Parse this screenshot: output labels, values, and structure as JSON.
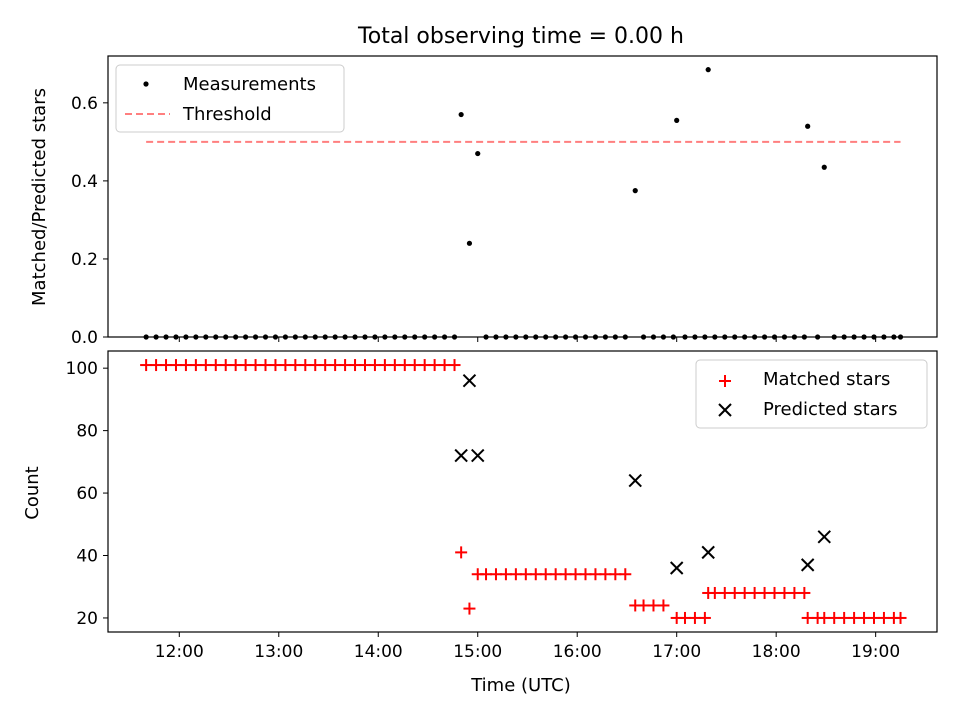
{
  "chart_data": [
    {
      "type": "scatter",
      "title": "Total observing time = 0.00 h",
      "xlabel": "",
      "ylabel": "Matched/Predicted stars",
      "xlim": [
        "11:17",
        "19:37"
      ],
      "ylim": [
        0,
        0.72
      ],
      "yticks": [
        "0.0",
        "0.2",
        "0.4",
        "0.6"
      ],
      "grid": false,
      "legend_position": "upper-left",
      "legend": [
        "Measurements",
        "Threshold"
      ],
      "series": [
        {
          "name": "Measurements",
          "marker": "dot",
          "color": "#000000",
          "points": [
            [
              "11:40",
              0.0
            ],
            [
              "11:46",
              0.0
            ],
            [
              "11:52",
              0.0
            ],
            [
              "11:58",
              0.0
            ],
            [
              "12:04",
              0.0
            ],
            [
              "12:10",
              0.0
            ],
            [
              "12:16",
              0.0
            ],
            [
              "12:22",
              0.0
            ],
            [
              "12:28",
              0.0
            ],
            [
              "12:34",
              0.0
            ],
            [
              "12:40",
              0.0
            ],
            [
              "12:46",
              0.0
            ],
            [
              "12:52",
              0.0
            ],
            [
              "12:58",
              0.0
            ],
            [
              "13:04",
              0.0
            ],
            [
              "13:10",
              0.0
            ],
            [
              "13:16",
              0.0
            ],
            [
              "13:22",
              0.0
            ],
            [
              "13:28",
              0.0
            ],
            [
              "13:34",
              0.0
            ],
            [
              "13:40",
              0.0
            ],
            [
              "13:46",
              0.0
            ],
            [
              "13:52",
              0.0
            ],
            [
              "13:58",
              0.0
            ],
            [
              "14:04",
              0.0
            ],
            [
              "14:10",
              0.0
            ],
            [
              "14:16",
              0.0
            ],
            [
              "14:22",
              0.0
            ],
            [
              "14:28",
              0.0
            ],
            [
              "14:34",
              0.0
            ],
            [
              "14:40",
              0.0
            ],
            [
              "14:46",
              0.0
            ],
            [
              "14:50",
              0.57
            ],
            [
              "14:55",
              0.24
            ],
            [
              "15:00",
              0.47
            ],
            [
              "15:05",
              0.0
            ],
            [
              "15:11",
              0.0
            ],
            [
              "15:17",
              0.0
            ],
            [
              "15:23",
              0.0
            ],
            [
              "15:29",
              0.0
            ],
            [
              "15:35",
              0.0
            ],
            [
              "15:41",
              0.0
            ],
            [
              "15:47",
              0.0
            ],
            [
              "15:53",
              0.0
            ],
            [
              "15:59",
              0.0
            ],
            [
              "16:05",
              0.0
            ],
            [
              "16:11",
              0.0
            ],
            [
              "16:17",
              0.0
            ],
            [
              "16:23",
              0.0
            ],
            [
              "16:29",
              0.0
            ],
            [
              "16:35",
              0.375
            ],
            [
              "16:40",
              0.0
            ],
            [
              "16:46",
              0.0
            ],
            [
              "16:52",
              0.0
            ],
            [
              "16:58",
              0.0
            ],
            [
              "17:00",
              0.555
            ],
            [
              "17:05",
              0.0
            ],
            [
              "17:11",
              0.0
            ],
            [
              "17:17",
              0.0
            ],
            [
              "17:19",
              0.685
            ],
            [
              "17:23",
              0.0
            ],
            [
              "17:29",
              0.0
            ],
            [
              "17:35",
              0.0
            ],
            [
              "17:41",
              0.0
            ],
            [
              "17:47",
              0.0
            ],
            [
              "17:53",
              0.0
            ],
            [
              "17:59",
              0.0
            ],
            [
              "18:05",
              0.0
            ],
            [
              "18:11",
              0.0
            ],
            [
              "18:17",
              0.0
            ],
            [
              "18:19",
              0.54
            ],
            [
              "18:25",
              0.0
            ],
            [
              "18:29",
              0.435
            ],
            [
              "18:35",
              0.0
            ],
            [
              "18:41",
              0.0
            ],
            [
              "18:47",
              0.0
            ],
            [
              "18:53",
              0.0
            ],
            [
              "18:59",
              0.0
            ],
            [
              "19:05",
              0.0
            ],
            [
              "19:11",
              0.0
            ],
            [
              "19:15",
              0.0
            ]
          ]
        },
        {
          "name": "Threshold",
          "line_style": "dashed",
          "color": "#ff7f7f",
          "points": [
            [
              "11:40",
              0.5
            ],
            [
              "19:15",
              0.5
            ]
          ]
        }
      ]
    },
    {
      "type": "scatter",
      "title": "",
      "xlabel": "Time (UTC)",
      "ylabel": "Count",
      "xlim": [
        "11:17",
        "19:37"
      ],
      "ylim": [
        15.5,
        105.5
      ],
      "xticks": [
        "12:00",
        "13:00",
        "14:00",
        "15:00",
        "16:00",
        "17:00",
        "18:00",
        "19:00"
      ],
      "yticks": [
        "20",
        "40",
        "60",
        "80",
        "100"
      ],
      "grid": false,
      "legend_position": "upper-right",
      "legend": [
        "Matched stars",
        "Predicted stars"
      ],
      "series": [
        {
          "name": "Matched stars",
          "marker": "plus",
          "color": "#ff0000",
          "points": [
            [
              "11:40",
              101
            ],
            [
              "11:46",
              101
            ],
            [
              "11:52",
              101
            ],
            [
              "11:58",
              101
            ],
            [
              "12:04",
              101
            ],
            [
              "12:10",
              101
            ],
            [
              "12:16",
              101
            ],
            [
              "12:22",
              101
            ],
            [
              "12:28",
              101
            ],
            [
              "12:34",
              101
            ],
            [
              "12:40",
              101
            ],
            [
              "12:46",
              101
            ],
            [
              "12:52",
              101
            ],
            [
              "12:58",
              101
            ],
            [
              "13:04",
              101
            ],
            [
              "13:10",
              101
            ],
            [
              "13:16",
              101
            ],
            [
              "13:22",
              101
            ],
            [
              "13:28",
              101
            ],
            [
              "13:34",
              101
            ],
            [
              "13:40",
              101
            ],
            [
              "13:46",
              101
            ],
            [
              "13:52",
              101
            ],
            [
              "13:58",
              101
            ],
            [
              "14:04",
              101
            ],
            [
              "14:10",
              101
            ],
            [
              "14:16",
              101
            ],
            [
              "14:22",
              101
            ],
            [
              "14:28",
              101
            ],
            [
              "14:34",
              101
            ],
            [
              "14:40",
              101
            ],
            [
              "14:46",
              101
            ],
            [
              "14:50",
              41
            ],
            [
              "14:55",
              23
            ],
            [
              "15:00",
              34
            ],
            [
              "15:05",
              34
            ],
            [
              "15:11",
              34
            ],
            [
              "15:17",
              34
            ],
            [
              "15:23",
              34
            ],
            [
              "15:29",
              34
            ],
            [
              "15:35",
              34
            ],
            [
              "15:41",
              34
            ],
            [
              "15:47",
              34
            ],
            [
              "15:53",
              34
            ],
            [
              "15:59",
              34
            ],
            [
              "16:05",
              34
            ],
            [
              "16:11",
              34
            ],
            [
              "16:17",
              34
            ],
            [
              "16:23",
              34
            ],
            [
              "16:29",
              34
            ],
            [
              "16:35",
              24
            ],
            [
              "16:40",
              24
            ],
            [
              "16:46",
              24
            ],
            [
              "16:52",
              24
            ],
            [
              "17:00",
              20
            ],
            [
              "17:05",
              20
            ],
            [
              "17:11",
              20
            ],
            [
              "17:17",
              20
            ],
            [
              "17:19",
              28
            ],
            [
              "17:23",
              28
            ],
            [
              "17:29",
              28
            ],
            [
              "17:35",
              28
            ],
            [
              "17:41",
              28
            ],
            [
              "17:47",
              28
            ],
            [
              "17:53",
              28
            ],
            [
              "17:59",
              28
            ],
            [
              "18:05",
              28
            ],
            [
              "18:11",
              28
            ],
            [
              "18:17",
              28
            ],
            [
              "18:19",
              20
            ],
            [
              "18:25",
              20
            ],
            [
              "18:29",
              20
            ],
            [
              "18:35",
              20
            ],
            [
              "18:41",
              20
            ],
            [
              "18:47",
              20
            ],
            [
              "18:53",
              20
            ],
            [
              "18:59",
              20
            ],
            [
              "19:05",
              20
            ],
            [
              "19:11",
              20
            ],
            [
              "19:15",
              20
            ]
          ]
        },
        {
          "name": "Predicted stars",
          "marker": "x",
          "color": "#000000",
          "points": [
            [
              "14:50",
              72
            ],
            [
              "14:55",
              96
            ],
            [
              "15:00",
              72
            ],
            [
              "16:35",
              64
            ],
            [
              "17:00",
              36
            ],
            [
              "17:19",
              41
            ],
            [
              "18:19",
              37
            ],
            [
              "18:29",
              46
            ]
          ]
        }
      ]
    }
  ]
}
